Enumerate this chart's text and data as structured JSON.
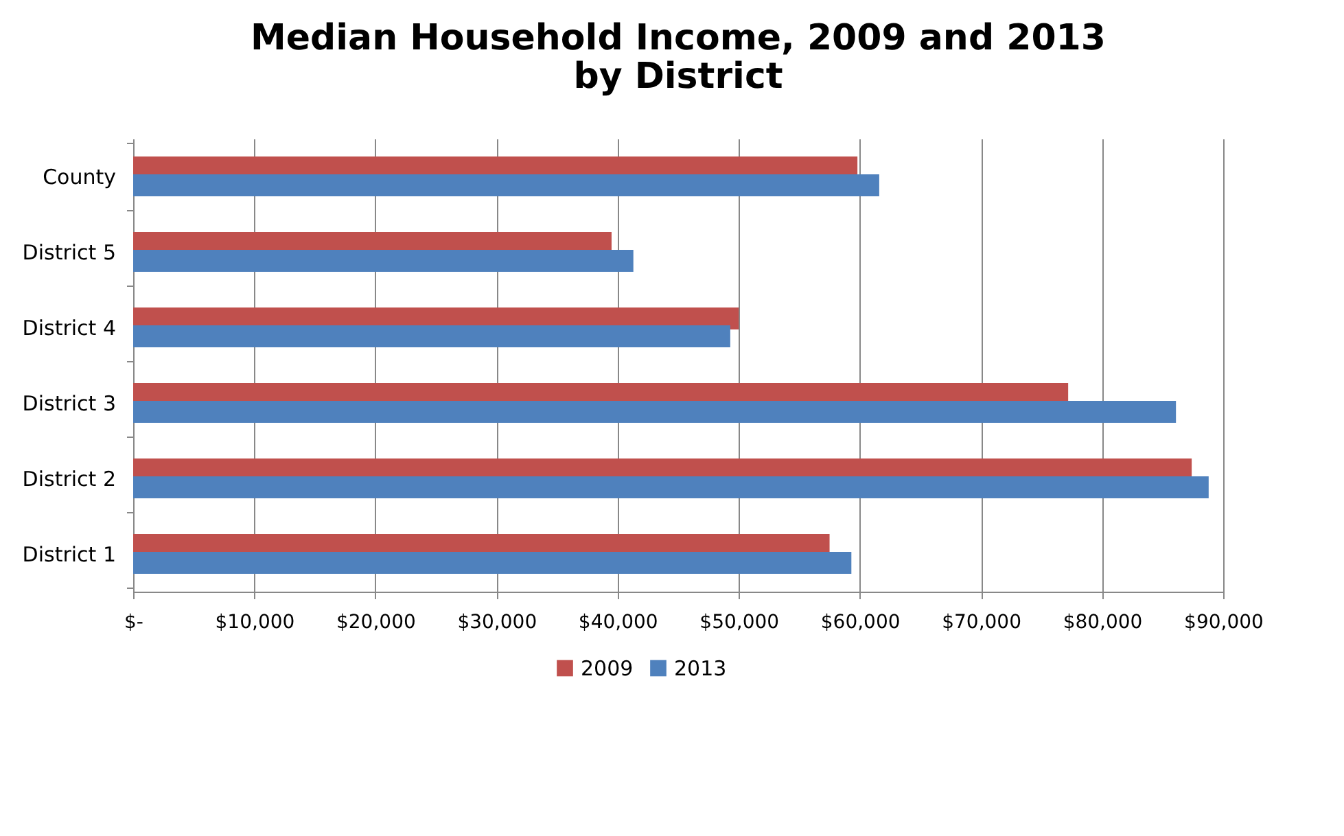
{
  "chart_data": {
    "type": "bar",
    "orientation": "horizontal",
    "title": "Median Household Income, 2009 and 2013\nby District",
    "categories": [
      "County",
      "District 5",
      "District 4",
      "District 3",
      "District 2",
      "District 1"
    ],
    "series": [
      {
        "name": "2009",
        "color": "#c0504d",
        "values": [
          59800,
          39500,
          50000,
          77200,
          87400,
          57500
        ]
      },
      {
        "name": "2013",
        "color": "#4f81bd",
        "values": [
          61600,
          41300,
          49300,
          86100,
          88800,
          59300
        ]
      }
    ],
    "xlim": [
      0,
      90000
    ],
    "xticks": [
      {
        "value": 0,
        "label": "$-"
      },
      {
        "value": 10000,
        "label": "$10,000"
      },
      {
        "value": 20000,
        "label": "$20,000"
      },
      {
        "value": 30000,
        "label": "$30,000"
      },
      {
        "value": 40000,
        "label": "$40,000"
      },
      {
        "value": 50000,
        "label": "$50,000"
      },
      {
        "value": 60000,
        "label": "$60,000"
      },
      {
        "value": 70000,
        "label": "$70,000"
      },
      {
        "value": 80000,
        "label": "$80,000"
      },
      {
        "value": 90000,
        "label": "$90,000"
      }
    ],
    "grid": "x",
    "legend": "bottom"
  }
}
